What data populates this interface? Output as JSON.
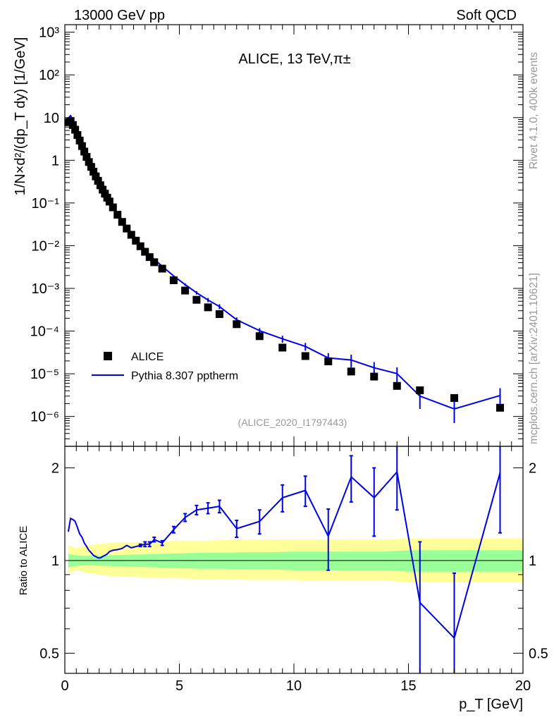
{
  "header": {
    "left": "13000 GeV pp",
    "right": "Soft QCD"
  },
  "side": {
    "rivet": "Rivet 4.1.0,  400k events",
    "mcplots": "mcplots.cern.ch [arXiv:2401.10621]"
  },
  "colors": {
    "mc": "#0000e6",
    "data": "#000000",
    "band_inner": "#99ff99",
    "band_outer": "#ffff99"
  },
  "chart_data": [
    {
      "type": "scatter",
      "title": "ALICE, 13 TeV,π±",
      "analysis_id": "(ALICE_2020_I1797443)",
      "ylabel": "1/N×d²/(dp_T dy) [1/GeV]",
      "xlabel": "p_T [GeV]",
      "yscale": "log",
      "ylim": [
        2e-07,
        1500
      ],
      "xlim": [
        0,
        20
      ],
      "y_ticks": [
        "10⁻⁶",
        "10⁻⁵",
        "10⁻⁴",
        "10⁻³",
        "10⁻²",
        "10⁻¹",
        "1",
        "10",
        "10²",
        "10³"
      ],
      "legend": [
        {
          "label": "ALICE",
          "kind": "marker"
        },
        {
          "label": "Pythia 8.307 pptherm",
          "kind": "line"
        }
      ],
      "series": [
        {
          "name": "ALICE",
          "x": [
            0.15,
            0.25,
            0.35,
            0.45,
            0.55,
            0.65,
            0.75,
            0.85,
            0.95,
            1.05,
            1.15,
            1.25,
            1.35,
            1.45,
            1.55,
            1.65,
            1.75,
            1.85,
            1.95,
            2.1,
            2.3,
            2.5,
            2.7,
            2.9,
            3.1,
            3.3,
            3.5,
            3.7,
            3.9,
            4.25,
            4.75,
            5.25,
            5.75,
            6.25,
            6.75,
            7.5,
            8.5,
            9.5,
            10.5,
            11.5,
            12.5,
            13.5,
            14.5,
            15.5,
            17.0,
            19.0
          ],
          "y": [
            7.8,
            8.1,
            6.7,
            5.2,
            3.9,
            2.9,
            2.15,
            1.6,
            1.2,
            0.91,
            0.7,
            0.54,
            0.42,
            0.33,
            0.26,
            0.205,
            0.165,
            0.133,
            0.108,
            0.079,
            0.053,
            0.036,
            0.0252,
            0.018,
            0.0131,
            0.0097,
            0.0072,
            0.0054,
            0.0041,
            0.0029,
            0.00155,
            0.00089,
            0.00054,
            0.00036,
            0.00025,
            0.000145,
            7.6e-05,
            4.1e-05,
            2.6e-05,
            1.95e-05,
            1.13e-05,
            8.6e-06,
            5.2e-06,
            4.1e-06,
            2.7e-06,
            1.6e-06
          ]
        },
        {
          "name": "Pythia 8.307 pptherm",
          "x": [
            0.15,
            0.25,
            0.35,
            0.45,
            0.55,
            0.65,
            0.75,
            0.85,
            0.95,
            1.05,
            1.15,
            1.25,
            1.35,
            1.45,
            1.55,
            1.65,
            1.75,
            1.85,
            1.95,
            2.1,
            2.3,
            2.5,
            2.7,
            2.9,
            3.1,
            3.3,
            3.5,
            3.7,
            3.9,
            4.25,
            4.75,
            5.25,
            5.75,
            6.25,
            6.75,
            7.5,
            8.5,
            9.5,
            10.5,
            11.5,
            12.5,
            13.5,
            14.5,
            15.5,
            17.0,
            19.0
          ],
          "y": [
            9.7,
            11.1,
            9.1,
            6.95,
            5.0,
            3.55,
            2.55,
            1.83,
            1.33,
            0.98,
            0.74,
            0.56,
            0.43,
            0.335,
            0.265,
            0.211,
            0.172,
            0.14,
            0.115,
            0.0855,
            0.0575,
            0.0395,
            0.0282,
            0.0198,
            0.0146,
            0.0109,
            0.0081,
            0.0061,
            0.0048,
            0.0033,
            0.00195,
            0.00123,
            0.00079,
            0.000535,
            0.000375,
            0.000184,
            0.000102,
            6.56e-05,
            4.38e-05,
            2.35e-05,
            2.1e-05,
            1.38e-05,
            1.01e-05,
            3e-06,
            1.5e-06,
            3.1e-06
          ],
          "yerr": [
            0,
            0,
            0,
            0,
            0,
            0,
            0,
            0,
            0,
            0,
            0,
            0,
            0,
            0,
            0,
            0,
            0,
            0,
            0,
            0,
            0,
            0,
            0,
            0,
            0,
            0,
            0,
            0,
            0,
            0,
            0,
            8e-05,
            7e-05,
            6e-05,
            5e-05,
            2.5e-05,
            1.5e-05,
            1.2e-05,
            9e-06,
            7e-06,
            7e-06,
            5e-06,
            4e-06,
            1.5e-06,
            8e-07,
            1.5e-06
          ]
        }
      ]
    },
    {
      "type": "line",
      "title": "Ratio to ALICE",
      "xlabel": "p_T [GeV]",
      "ylabel": "Ratio to ALICE",
      "yscale": "log",
      "ylim": [
        0.43,
        2.35
      ],
      "xlim": [
        0,
        20
      ],
      "x_ticks": [
        "0",
        "5",
        "10",
        "15",
        "20"
      ],
      "y_ticks": [
        "0.5",
        "1",
        "2"
      ],
      "series": [
        {
          "name": "Pythia 8.307 pptherm / ALICE",
          "x": [
            0.15,
            0.25,
            0.35,
            0.45,
            0.55,
            0.65,
            0.75,
            0.85,
            0.95,
            1.05,
            1.15,
            1.25,
            1.35,
            1.45,
            1.55,
            1.65,
            1.75,
            1.85,
            1.95,
            2.1,
            2.3,
            2.5,
            2.7,
            2.9,
            3.1,
            3.3,
            3.5,
            3.7,
            3.9,
            4.25,
            4.75,
            5.25,
            5.75,
            6.25,
            6.75,
            7.5,
            8.5,
            9.5,
            10.5,
            11.5,
            12.5,
            13.5,
            14.5,
            15.5,
            17.0,
            19.0
          ],
          "y": [
            1.24,
            1.37,
            1.36,
            1.34,
            1.28,
            1.22,
            1.19,
            1.14,
            1.11,
            1.08,
            1.06,
            1.04,
            1.03,
            1.02,
            1.02,
            1.03,
            1.04,
            1.05,
            1.07,
            1.08,
            1.085,
            1.095,
            1.12,
            1.1,
            1.11,
            1.12,
            1.13,
            1.13,
            1.17,
            1.14,
            1.26,
            1.38,
            1.46,
            1.48,
            1.5,
            1.27,
            1.34,
            1.6,
            1.69,
            1.2,
            1.87,
            1.6,
            1.94,
            0.73,
            0.56,
            1.93
          ],
          "yerr": [
            0,
            0,
            0,
            0,
            0,
            0,
            0,
            0,
            0,
            0,
            0,
            0,
            0,
            0,
            0,
            0,
            0,
            0,
            0,
            0,
            0,
            0,
            0,
            0,
            0,
            0.01,
            0.02,
            0.02,
            0.02,
            0.02,
            0.03,
            0.04,
            0.05,
            0.06,
            0.07,
            0.08,
            0.12,
            0.16,
            0.19,
            0.27,
            0.32,
            0.4,
            0.48,
            0.42,
            0.35,
            0.7
          ]
        }
      ],
      "band_stat": {
        "x": [
          0.15,
          0.5,
          1,
          2,
          3,
          4,
          5,
          6,
          7,
          8,
          9,
          10,
          11,
          12,
          13,
          14,
          15,
          16,
          17,
          18,
          19,
          20
        ],
        "lo": [
          0.95,
          0.96,
          0.965,
          0.96,
          0.955,
          0.95,
          0.945,
          0.94,
          0.94,
          0.935,
          0.935,
          0.93,
          0.93,
          0.93,
          0.93,
          0.93,
          0.92,
          0.92,
          0.92,
          0.92,
          0.92,
          0.92
        ],
        "hi": [
          1.05,
          1.04,
          1.035,
          1.04,
          1.045,
          1.05,
          1.055,
          1.06,
          1.06,
          1.065,
          1.065,
          1.07,
          1.07,
          1.07,
          1.07,
          1.07,
          1.08,
          1.08,
          1.08,
          1.08,
          1.08,
          1.08
        ]
      },
      "band_total": {
        "x": [
          0.15,
          0.5,
          1,
          2,
          3,
          4,
          5,
          6,
          7,
          8,
          9,
          10,
          11,
          12,
          13,
          14,
          15,
          16,
          17,
          18,
          19,
          20
        ],
        "lo": [
          0.91,
          0.93,
          0.91,
          0.89,
          0.885,
          0.88,
          0.875,
          0.87,
          0.87,
          0.865,
          0.865,
          0.865,
          0.86,
          0.86,
          0.86,
          0.86,
          0.85,
          0.85,
          0.85,
          0.85,
          0.85,
          0.85
        ],
        "hi": [
          1.12,
          1.1,
          1.12,
          1.14,
          1.145,
          1.15,
          1.16,
          1.16,
          1.165,
          1.17,
          1.17,
          1.17,
          1.17,
          1.17,
          1.17,
          1.17,
          1.18,
          1.18,
          1.18,
          1.18,
          1.18,
          1.18
        ]
      }
    }
  ]
}
